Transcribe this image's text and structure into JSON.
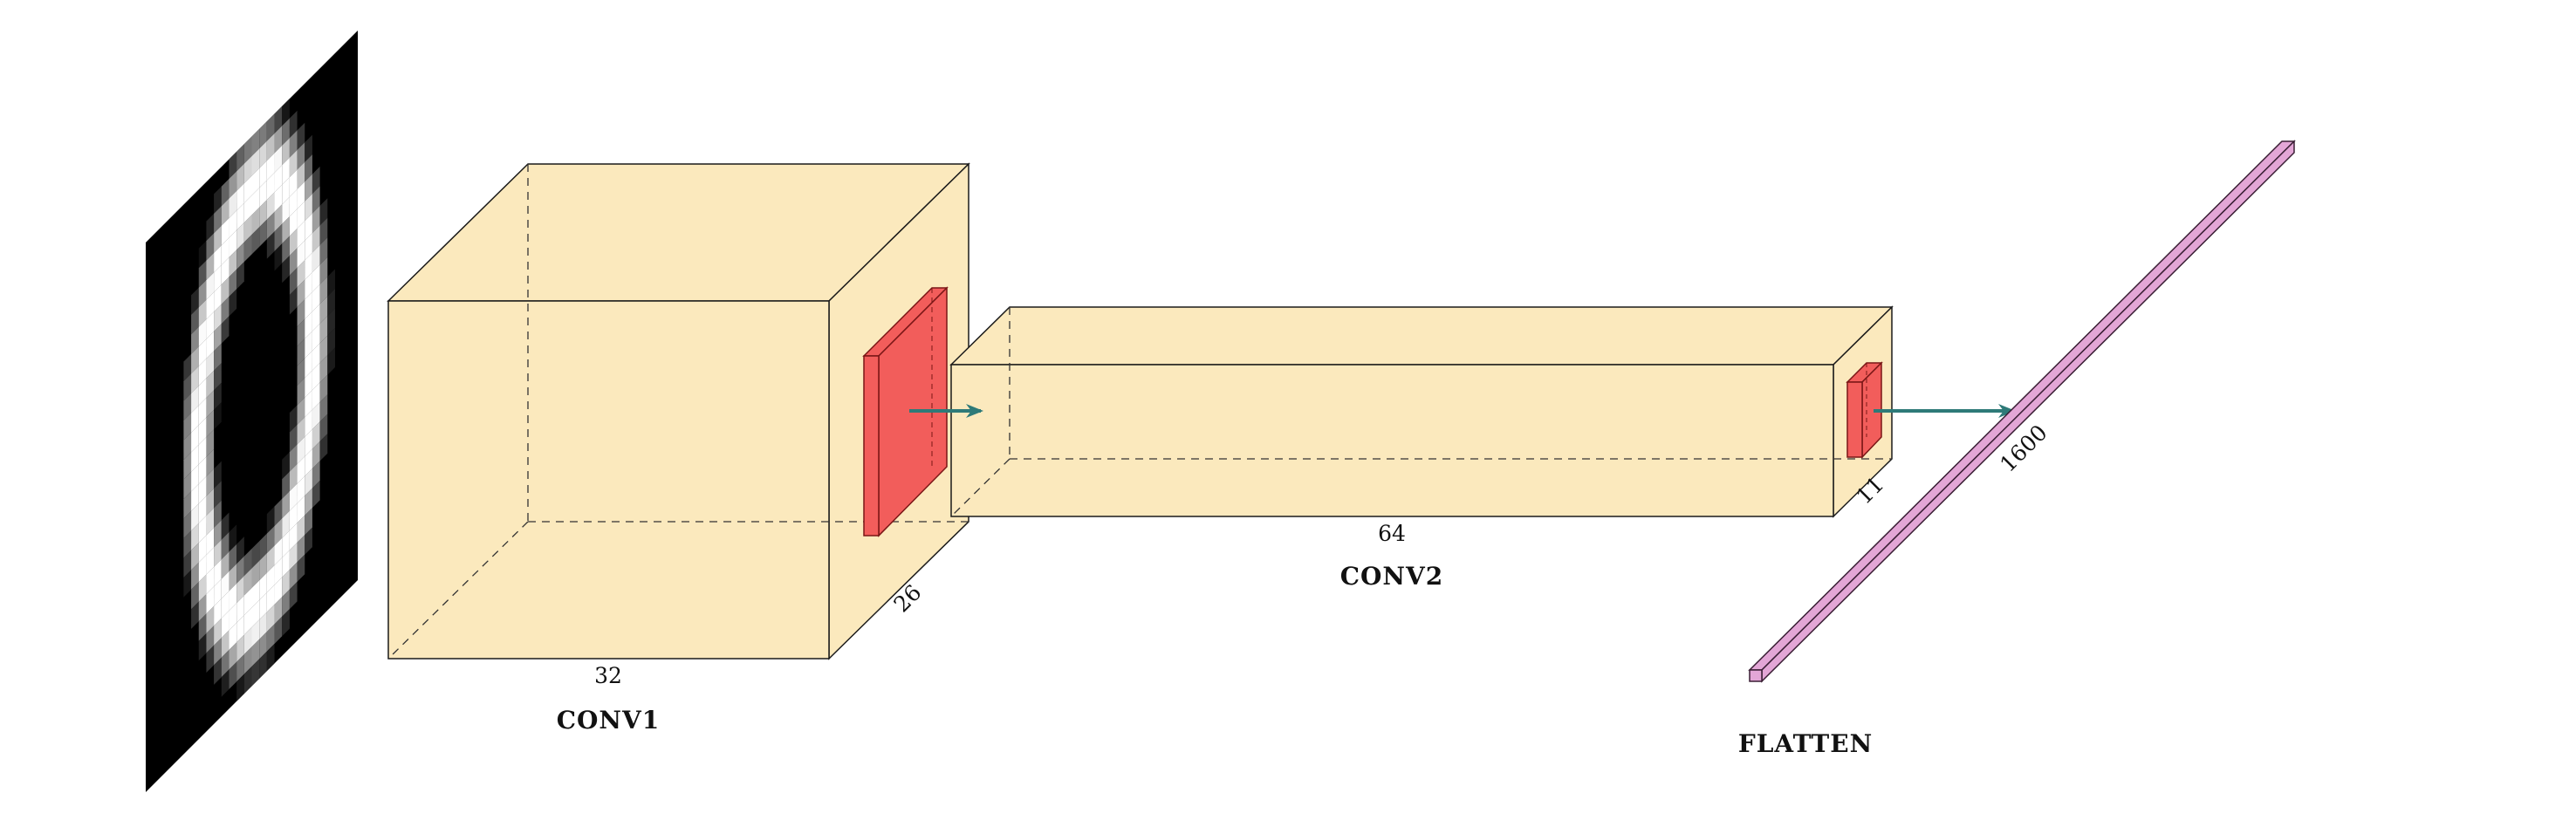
{
  "colors": {
    "block_fill": "#fbe9bd",
    "block_stroke": "#1a1a1a",
    "kernel_fill": "#f25d5b",
    "kernel_stroke": "#7a1616",
    "arrow": "#2e7a78",
    "flatten_fill": "#e3a6d6",
    "flatten_stroke": "#3a1f35",
    "input_bg": "#000000"
  },
  "input": {
    "icon": "digit-zero-input-image"
  },
  "conv1": {
    "caption": "CONV1",
    "width_label": "32",
    "depth_label": "26"
  },
  "conv2": {
    "caption": "CONV2",
    "width_label": "64",
    "depth_label": "11"
  },
  "flatten": {
    "caption": "FLATTEN",
    "length_label": "1600"
  }
}
